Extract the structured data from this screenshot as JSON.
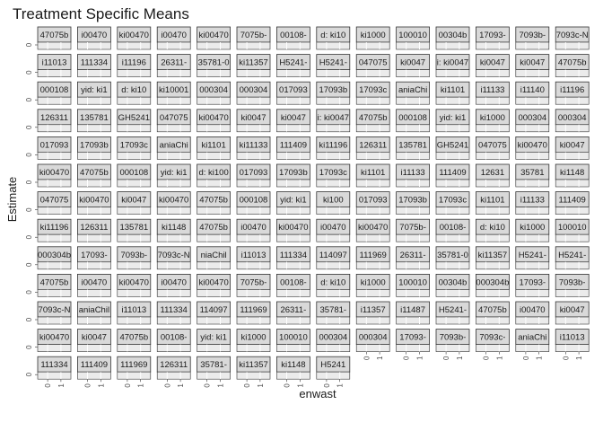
{
  "chart_data": {
    "type": "scatter",
    "title": "Treatment Specific Means",
    "xlabel": "enwast",
    "ylabel": "Estimate",
    "x_ticks": [
      "0",
      "1"
    ],
    "y_ticks": [
      "0",
      "0"
    ],
    "panel_grid": "on",
    "strip_labels": [
      "47075b",
      "i00470",
      "ki00470",
      "i00470",
      "ki00470",
      "7075b-",
      "00108-",
      "d: ki10",
      "ki1000",
      "100010",
      "00304b",
      "17093-",
      "7093b-",
      "7093c-N",
      "i11013",
      "111334",
      "i11196",
      "26311-",
      "35781-0",
      "ki11357",
      "H5241-",
      "H5241-",
      "047075",
      "ki0047",
      "i: ki0047",
      "ki0047",
      "ki0047",
      "47075b",
      "000108",
      "yid: ki1",
      "d: ki10",
      "ki10001",
      "000304",
      "000304",
      "017093",
      "17093b",
      "17093c",
      "aniaChi",
      "ki1101",
      "i11133",
      "i11140",
      "i11196",
      "126311",
      "135781",
      "GH5241",
      "047075",
      "ki00470",
      "ki0047",
      "ki0047",
      "i: ki0047",
      "47075b",
      "000108",
      "yid: ki1",
      "ki1000",
      "000304",
      "000304",
      "017093",
      "17093b",
      "17093c",
      "aniaChi",
      "ki1101",
      "ki11133",
      "111409",
      "ki11196",
      "126311",
      "135781",
      "GH5241",
      "047075",
      "ki00470",
      "ki0047",
      "ki00470",
      "47075b",
      "000108",
      "yid: ki1",
      "d: ki100",
      "017093",
      "17093b",
      "17093c",
      "ki1101",
      "i11133",
      "111409",
      "12631",
      "35781",
      "ki1148",
      "047075",
      "ki00470",
      "ki0047",
      "ki00470",
      "47075b",
      "000108",
      "yid: ki1",
      "ki100",
      "017093",
      "17093b",
      "17093c",
      "ki1101",
      "i11133",
      "111409",
      "ki11196",
      "126311",
      "135781",
      "ki1148",
      "47075b",
      "i00470",
      "ki00470",
      "i00470",
      "ki00470",
      "7075b-",
      "00108-",
      "d: ki10",
      "ki1000",
      "100010",
      "000304b",
      "17093-",
      "7093b-",
      "7093c-N",
      "niaChil",
      "i11013",
      "111334",
      "114097",
      "111969",
      "26311-",
      "35781-0",
      "ki11357",
      "H5241-",
      "H5241-",
      "47075b",
      "i00470",
      "ki00470",
      "i00470",
      "ki00470",
      "7075b-",
      "00108-",
      "d: ki10",
      "ki1000",
      "100010",
      "00304b",
      "000304b",
      "17093-",
      "7093b-",
      "7093c-N",
      "aniaChil",
      "i11013",
      "111334",
      "114097",
      "111969",
      "26311-",
      "35781-",
      "i11357",
      "i11487",
      "H5241-",
      "47075b",
      "i00470",
      "ki0047",
      "ki00470",
      "ki0047",
      "47075b",
      "00108-",
      "yid: ki1",
      "ki1000",
      "100010",
      "000304",
      "000304",
      "17093-",
      "7093b-",
      "7093c-",
      "aniaChi",
      "i11013",
      "111334",
      "111409",
      "111969",
      "126311",
      "35781-",
      "ki11357",
      "ki1148",
      "H5241"
    ]
  }
}
